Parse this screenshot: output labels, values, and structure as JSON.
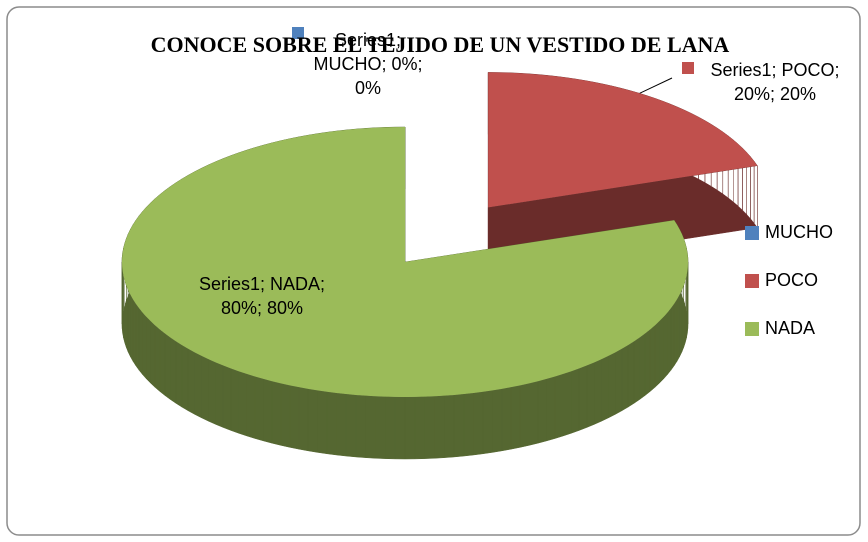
{
  "chart_data": {
    "type": "pie",
    "title": "CONOCE SOBRE EL TEJIDO DE UN VESTIDO DE LANA",
    "categories": [
      "MUCHO",
      "POCO",
      "NADA"
    ],
    "values": [
      0,
      20,
      80
    ],
    "value_labels": [
      "Series1; MUCHO; 0%; 0%",
      "Series1; POCO; 20%; 20%",
      "Series1; NADA; 80%; 80%"
    ],
    "colors": [
      "#4f81bd",
      "#c0504d",
      "#9bbb59"
    ],
    "legend": "right"
  }
}
